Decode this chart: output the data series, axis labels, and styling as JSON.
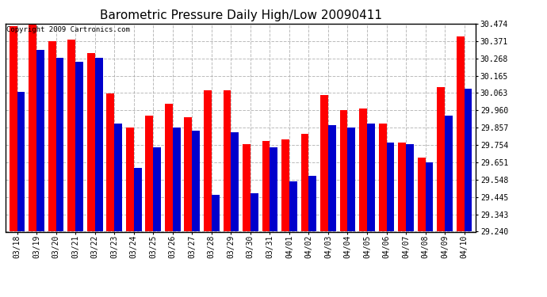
{
  "title": "Barometric Pressure Daily High/Low 20090411",
  "copyright": "Copyright 2009 Cartronics.com",
  "dates": [
    "03/18",
    "03/19",
    "03/20",
    "03/21",
    "03/22",
    "03/23",
    "03/24",
    "03/25",
    "03/26",
    "03/27",
    "03/28",
    "03/29",
    "03/30",
    "03/31",
    "04/01",
    "04/02",
    "04/03",
    "04/04",
    "04/05",
    "04/06",
    "04/07",
    "04/08",
    "04/09",
    "04/10"
  ],
  "highs": [
    30.46,
    30.47,
    30.37,
    30.38,
    30.3,
    30.06,
    29.86,
    29.93,
    30.0,
    29.92,
    30.08,
    30.08,
    29.76,
    29.78,
    29.79,
    29.82,
    30.05,
    29.96,
    29.97,
    29.88,
    29.77,
    29.68,
    30.1,
    30.4
  ],
  "lows": [
    30.07,
    30.32,
    30.27,
    30.25,
    30.27,
    29.88,
    29.62,
    29.74,
    29.86,
    29.84,
    29.46,
    29.83,
    29.47,
    29.74,
    29.54,
    29.57,
    29.87,
    29.86,
    29.88,
    29.77,
    29.76,
    29.65,
    29.93,
    30.09
  ],
  "y_min": 29.24,
  "y_max": 30.474,
  "y_ticks": [
    29.24,
    29.343,
    29.445,
    29.548,
    29.651,
    29.754,
    29.857,
    29.96,
    30.063,
    30.165,
    30.268,
    30.371,
    30.474
  ],
  "bar_width": 0.4,
  "high_color": "#ff0000",
  "low_color": "#0000cc",
  "bg_color": "#ffffff",
  "grid_color": "#aaaaaa",
  "title_fontsize": 11,
  "tick_fontsize": 7,
  "copyright_fontsize": 6.5
}
